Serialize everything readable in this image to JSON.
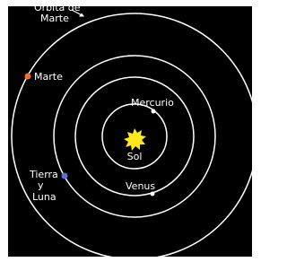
{
  "diagram": {
    "orbit_label": [
      "Orbita de",
      "Marte"
    ],
    "sun": "Sol",
    "planets": [
      {
        "label": [
          "Mercurio"
        ]
      },
      {
        "label": [
          "Venus"
        ]
      },
      {
        "label": [
          "Tierra",
          "y",
          "Luna"
        ]
      },
      {
        "label": [
          "Marte"
        ]
      }
    ]
  }
}
